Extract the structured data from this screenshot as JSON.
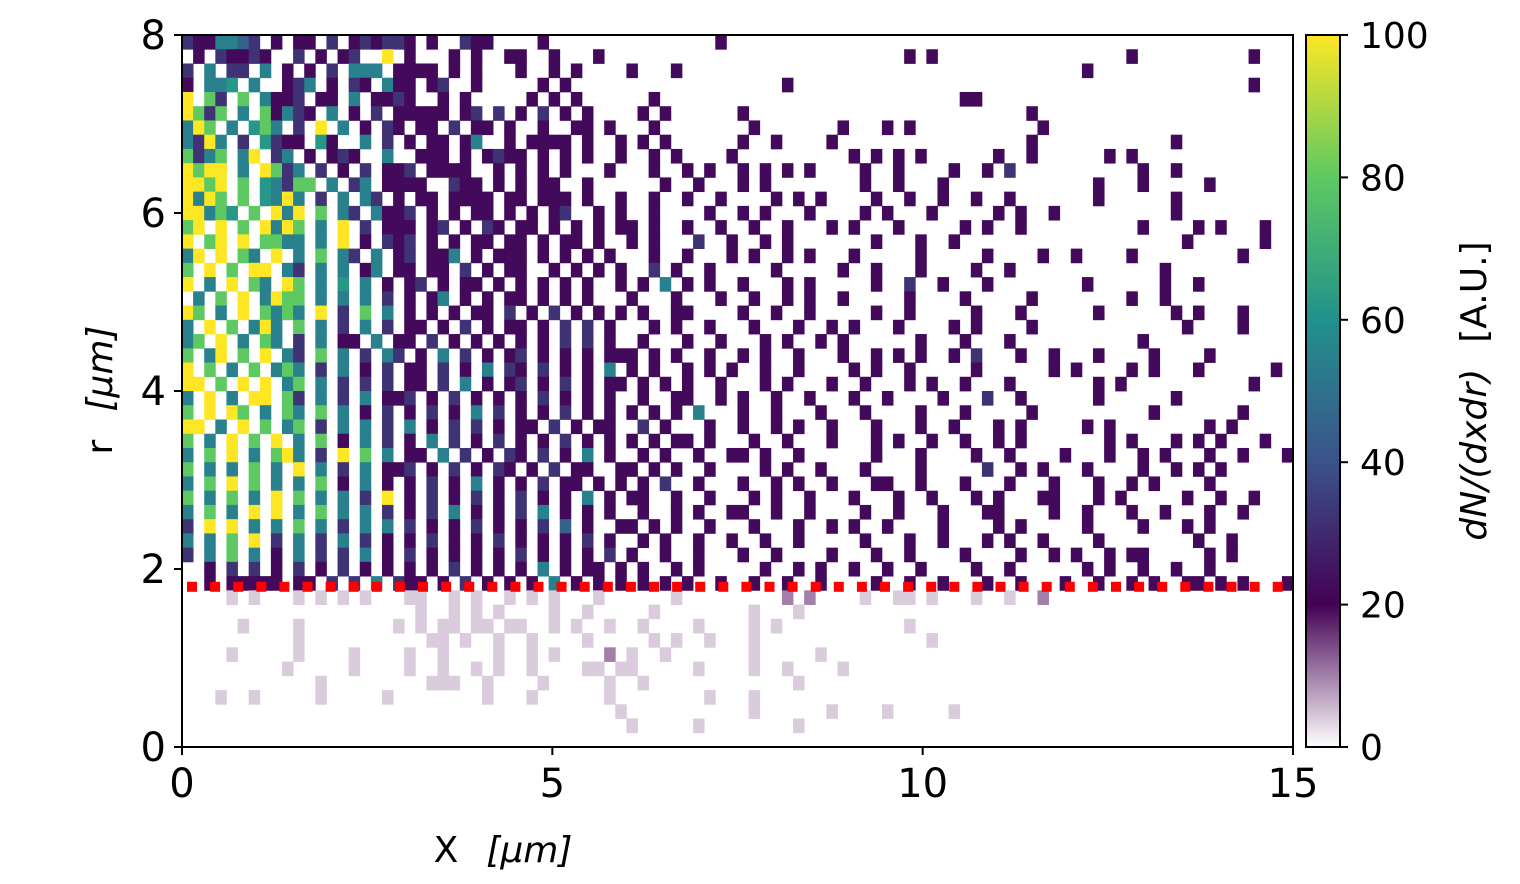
{
  "chart_data": {
    "type": "heatmap",
    "title": "",
    "xlabel": "X",
    "xlabel_unit": "[μm]",
    "ylabel": "r",
    "ylabel_unit": "[μm]",
    "colorbar_label": "dN/(dxdr)",
    "colorbar_unit": "[A.U.]",
    "xlim": [
      0,
      15
    ],
    "ylim": [
      0,
      8
    ],
    "clim": [
      0,
      100
    ],
    "x_ticks": [
      "0",
      "5",
      "10",
      "15"
    ],
    "y_ticks": [
      "0",
      "2",
      "4",
      "6",
      "8"
    ],
    "colorbar_ticks": [
      "0",
      "20",
      "40",
      "60",
      "80",
      "100"
    ],
    "grid": false,
    "colormap": "white-to-purple below 20, viridis from 20 to 100",
    "x_bins": 100,
    "y_bins": 50,
    "cell_value_codes": {
      ".": 0,
      "a": 4,
      "b": 10,
      "2": 22,
      "3": 32,
      "4": 45,
      "5": 55,
      "6": 62,
      "7": 80,
      "8": 100
    },
    "rows_top_to_bottom": [
      "3225543.2.22.3.232332.2..322....2...............2..............................................",
      ".2.32232..3.2.23..8.2...2.2..22..2...2...........................2.2.................2..........2.",
      "3.5.33.5.2.2.3.555.2222.2.2...2..2.2....2...2....................................2...................",
      "2.556.5..235.2.32.522.23..2.....2.2...................2.........................................2",
      "8.73.7.5223.22.5.2232..2.2.....2.2.2......2...........................22......................",
      "8737.5.72532.5.2.3.22222.23.3.2.3.2.2....2.2......2.........................2......................",
      "587.5.675.3.8.5.2.32.22.3.22.2..2..22.2...2........2.......2...2.2...........2....................",
      "5385.3.6322.62..5.3.2.22.25..2.2222.2..2.2.2......2..2....2.................2............2........",
      "7357.58.35.2.232..5..222.2.2322.2.2.2..2..2.2....2..........2.2.2.2......2..2......2.2............",
      "8788.5.8735.3.2.3.223.2222..2.2.2.2...2...2..2.2..2.2.2.2....2..2....2..2.3...........2..2.........",
      "8878.7.65377.5.35.2222..322.2.2.22..2......2..2...2.2........2..2...2.............2...2.....2......",
      "8587.7.6585.3.5.53.2.22.2222.22.222.2..2..2..2..2....2.2.2....2..2..2..2..2.......2......2.........",
      "88576.7.858.7.53.5223.2.2.22.2.2.23..2.2..2....2..2.2...2....2.2...2.....2.2..2..........2.........",
      "78.8.7.8587.5.8.3.222.23.2.32.22.2.2.2.22.2..2..2..2..2...2.2...2.....2.2..2..........2....2.2...2...",
      "8.78.8.7755.5.8.2.323.2.2.22.22.2.22.2..2.2...3..2..2.2.......2...2..2....................2......2",
      "58.8.75.8.5.7.53.5.23.225.2.222.2.2.2.2...2..2...2.2..2.2...2.....2.....2....2..2....2.........2.....",
      "7.8.7.88.53.5.5.25.22.22.3.2.22..2.2.2.2..3.2..2.....2.....2..2...2....2..2.............2..........",
      "8.5.8.75.87.5.6.5.2.23.2.22.2.2.2.2.2..2.2.5.2.2..2...2.2.....2..3..2...2........2......2..2.......",
      ".5.7.8.5877.5.5.5.3.2.25.2.2.22.2.2.2...2...2...2..2..2.2..2.....2....2.....2........2..2..........",
      "87.5.8.7575.8.3.7.5.2.2.2.22.3.2.3.2.2.2.2..22....2..2..2.....2..2.....2...2......2......2.2...2....",
      "5.8.7.585.7.5.3.5.3.22.2.3.2.22.2.3.3.2...2.2..2...2...2..2.2...2....2.2....2.............2....2.....",
      "57.8.5.75.3.5.22.5.22.3.2.2.2.2.2.3.3.2..2...2..2...2.2..2.2......2...2...2...........2............",
      "7.58.7.8.53.7.5.3.53.2.5.3.2.23.2.2.2.222.2.2..2..2.2..2...2..2.2.2..2.3...2..2...2....2....2.......",
      "8.7.5.7.575.3.5.2.3.22.3.2.5.32.3.2.2.5.2.2..2.2.2..2..2....2.2..2.....2......2.2....2.2...2......2.",
      "88.7.8.8.57.5.3.3.3.22.3.5.2.23.2.3.2.22.2.2.2..2...2.2...2..2...2.2..2...2.......2.2...........2...",
      "5.8.5.88.73.5.3.5.223.2.3.2.2.2.3.2.2.2..2..22..2.2..2..2...2..2....2...3..2......2......2...........",
      "7.8.87.5.75.7.5.2.3.2.3.2.5.3.2.2.3.2.2.2.2.2.5...2..2...2...2....2...2.....2..........2.......2......",
      "88.5.8.7.57.3.5.5.3.5.2.3.3.2.22.3.2.22..3.2...2..2..2.2..2...2...2..2...2.2.....2.2........2.2.....",
      "7.5.8.7.8.5.7.2.5.3.2.5.3.2.3.2.2.3.2.2.2.2.22.2...2..2...2...2.2..2..2..2.2.......2.2...2.2.2...2...",
      "5.7.8.5.785.3.8.7.5.22.5.3.2.32.3.2.5.2..2.2..2..22.2..2......2...2....2..2....2...2..2.2...2..2...2",
      "7.5.5.7.5.8.5.3.5.223.2.3.2.32.2.3.22..22.2.2..2....2.2..2...2....2.....3..2.2...2....2..2.2.2......",
      "5.7.8.7.5.5.7.2.5.2.2.3.2.5.2.2.3.22.2.2.2.3..2...2..2.2..2...22..2...2...2...2...2..2.2....2.......",
      "7.5.7.5.8.7.5.5.3.8.2.3.2.3.2.3.2.2.5.2.22..2..2...2.2..2...2...2..2...2.2...22...2.2.....2..2..2...",
      "5.7.5.8.8.5.7.5.5.3.2.3.5.2.2.3.5.2.2.2..2..2.2..22..2..2....2..2...2...22....2..2...2..2...2..2....2",
      "3.8.8.5.5.7.5.3.5.5.3.2.2.3.2.2.3.4.2..22.2.2..2...2...2..2.2..2....2....2.2.....2....2...2.2.......",
      "5.5.7.8.3.5.3.5.3.2.2.3.2.2.3.2.2.2.3.2..2.2..2..2..2..2.....2...2..2...2.2..2....2........2..2.....",
      "3.5.7.5.2.5.3.3.5.2.3.2.2.2.2.3.2.2.2.3.2..2..2...2..2....2...2..2....2....2..2.2..2.22.....2.2.....",
      "..2.3.3.2.3.2.3.2.2.2.2.3.2.2.2.5.2.22.2.2..2.2.....2..2.2..2..2..2....2..2......2.2..2..2..2.......",
      "..2.22222.22.3.3.5.322.2.3.2.2.2.5.2.2.2.2.2.2..2..2..2..2....2..2..2...2..2...2..2..2.2..22.2.2...2.",
      "....a.a...a.a.a.a...aa..a.a..a.a.a...a......a.........b.b....a..aa.a...a..a..b.......................",
      ".....................a..a.a.a....a..a.....a........a...a.............................................",
      ".....a....a........a.a.aa.aa.aa..a.a..a..a....a....a.a...........a..................................",
      "..........a...........aa.a..a..a....a.....a.a..a...a...............a................................",
      "....a.....a....a....a..a....a..a.a....b.a..a.......a.....a...........................................",
      ".........a.....a....a..a..a.a..a....aa.aa.....a....a..a....a.........................................",
      "............a.........aaa..a....a.....a..a.............a...........................................",
      "...a..a.....a.....a........a...a......a........a...a.................................................",
      ".......................................a...........a......a....a.....a.............................",
      "........................................a.....a........a..........................................",
      "...................................................................................................."
    ],
    "reference_line": {
      "r": 1.8,
      "color": "#ff0000",
      "style": "dotted"
    }
  }
}
